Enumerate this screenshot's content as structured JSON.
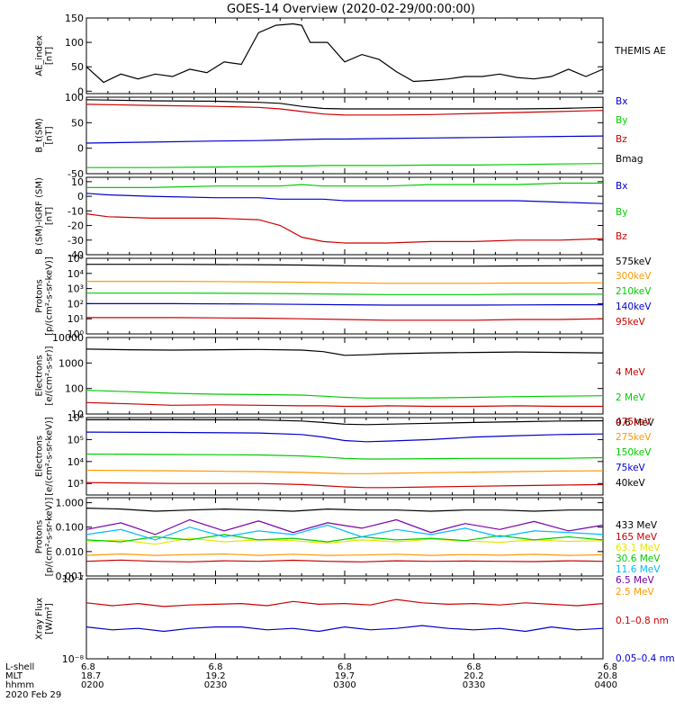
{
  "figure": {
    "title": "GOES-14 Overview (2020-02-29/00:00:00)"
  },
  "colors": {
    "black": "#000000",
    "red": "#cc0000",
    "blue": "#0000cc",
    "green": "#00cc00",
    "orange": "#ff9900",
    "yellow": "#e6e600",
    "cyan": "#00bbff",
    "purple": "#7700aa",
    "darkred": "#990000"
  },
  "footer": {
    "row_labels": [
      "L-shell",
      "MLT",
      "hhmm",
      "2020 Feb 29"
    ],
    "ticks": [
      {
        "lshell": "6.8",
        "mlt": "18.7",
        "hhmm": "0200"
      },
      {
        "lshell": "6.8",
        "mlt": "19.2",
        "hhmm": "0230"
      },
      {
        "lshell": "6.8",
        "mlt": "19.7",
        "hhmm": "0300"
      },
      {
        "lshell": "6.8",
        "mlt": "20.2",
        "hhmm": "0330"
      },
      {
        "lshell": "6.8",
        "mlt": "20.8",
        "hhmm": "0400"
      }
    ]
  },
  "chart_data": [
    {
      "type": "line",
      "ylabel": [
        "AE_index",
        "[nT]"
      ],
      "scale": "linear",
      "ylim": [
        -5,
        150
      ],
      "yticks": [
        0,
        50,
        100,
        150
      ],
      "ytick_labels": [
        "0",
        "50",
        "100",
        "150"
      ],
      "x": [
        0,
        4,
        8,
        12,
        16,
        20,
        24,
        28,
        32,
        36,
        40,
        44,
        48,
        50,
        52,
        56,
        60,
        64,
        68,
        72,
        76,
        80,
        84,
        88,
        92,
        96,
        100,
        104,
        108,
        112,
        116,
        120
      ],
      "series": [
        {
          "name": "THEMIS AE",
          "color": "black",
          "values": [
            50,
            18,
            35,
            25,
            35,
            30,
            45,
            38,
            60,
            55,
            120,
            135,
            138,
            135,
            100,
            100,
            60,
            75,
            65,
            40,
            20,
            22,
            25,
            30,
            30,
            35,
            28,
            25,
            30,
            45,
            30,
            45
          ]
        }
      ]
    },
    {
      "type": "line",
      "ylabel": [
        "B_t(SM)",
        "[nT]"
      ],
      "scale": "linear",
      "ylim": [
        -50,
        100
      ],
      "yticks": [
        -50,
        0,
        50,
        100
      ],
      "ytick_labels": [
        "-50",
        "0",
        "50",
        "100"
      ],
      "x": [
        0,
        15,
        30,
        40,
        45,
        50,
        55,
        60,
        70,
        80,
        90,
        100,
        110,
        120
      ],
      "series": [
        {
          "name": "Bx",
          "color": "blue",
          "values": [
            10,
            12,
            14,
            15,
            16,
            17,
            18,
            18,
            19,
            20,
            21,
            22,
            23,
            24
          ]
        },
        {
          "name": "By",
          "color": "green",
          "values": [
            -38,
            -38,
            -37,
            -36,
            -35,
            -35,
            -34,
            -34,
            -34,
            -33,
            -33,
            -32,
            -31,
            -30
          ]
        },
        {
          "name": "Bz",
          "color": "red",
          "values": [
            86,
            84,
            82,
            80,
            77,
            72,
            67,
            65,
            65,
            66,
            68,
            70,
            72,
            74
          ]
        },
        {
          "name": "Bmag",
          "color": "black",
          "values": [
            95,
            93,
            92,
            90,
            88,
            82,
            78,
            77,
            77,
            77,
            77,
            77,
            78,
            80
          ]
        }
      ]
    },
    {
      "type": "line",
      "ylabel": [
        "B (SM)-IGRF (SM)",
        "[nT]"
      ],
      "scale": "linear",
      "ylim": [
        -40,
        13
      ],
      "yticks": [
        -40,
        -30,
        -20,
        -10,
        0,
        10
      ],
      "ytick_labels": [
        "-40",
        "-30",
        "-20",
        "-10",
        "0",
        "10"
      ],
      "x": [
        0,
        5,
        15,
        30,
        40,
        45,
        50,
        55,
        60,
        70,
        80,
        90,
        100,
        110,
        120
      ],
      "series": [
        {
          "name": "Bx",
          "color": "blue",
          "values": [
            2,
            1,
            0,
            -1,
            -1,
            -2,
            -2,
            -2,
            -3,
            -3,
            -3,
            -3,
            -3,
            -4,
            -5
          ]
        },
        {
          "name": "By",
          "color": "green",
          "values": [
            6,
            6,
            6,
            7,
            7,
            7,
            8,
            7,
            7,
            7,
            8,
            8,
            8,
            9,
            9
          ]
        },
        {
          "name": "Bz",
          "color": "red",
          "values": [
            -12,
            -14,
            -15,
            -15,
            -16,
            -20,
            -28,
            -31,
            -32,
            -32,
            -31,
            -31,
            -30,
            -30,
            -29
          ]
        }
      ]
    },
    {
      "type": "line",
      "ylabel": [
        "Protons",
        "[p/(cm²-s-sr-keV)]"
      ],
      "scale": "log",
      "ylim": [
        1,
        100000
      ],
      "yticks": [
        1,
        10,
        100,
        1000,
        10000,
        100000
      ],
      "ytick_labels": [
        "10⁰",
        "10¹",
        "10²",
        "10³",
        "10⁴",
        "10⁵"
      ],
      "x": [
        0,
        20,
        40,
        50,
        60,
        70,
        80,
        90,
        100,
        110,
        120
      ],
      "series": [
        {
          "name": "575keV",
          "color": "black",
          "values": [
            40000,
            40000,
            38000,
            36000,
            32000,
            30000,
            30000,
            30000,
            31000,
            32000,
            33000
          ]
        },
        {
          "name": "300keV",
          "color": "orange",
          "values": [
            3000,
            3000,
            2800,
            2600,
            2400,
            2200,
            2200,
            2200,
            2300,
            2300,
            2400
          ]
        },
        {
          "name": "210keV",
          "color": "green",
          "values": [
            500,
            500,
            480,
            450,
            420,
            400,
            400,
            400,
            420,
            420,
            430
          ]
        },
        {
          "name": "140keV",
          "color": "blue",
          "values": [
            100,
            100,
            95,
            90,
            85,
            80,
            80,
            80,
            82,
            85,
            85
          ]
        },
        {
          "name": "95keV",
          "color": "red",
          "values": [
            12,
            12,
            11,
            10,
            9,
            8,
            8,
            8,
            9,
            9,
            10
          ]
        }
      ]
    },
    {
      "type": "line",
      "ylabel": [
        "Electrons",
        "[e/(cm²-s-sr)]"
      ],
      "scale": "log",
      "ylim": [
        10,
        10000
      ],
      "yticks": [
        10,
        100,
        1000,
        10000
      ],
      "ytick_labels": [
        "10",
        "100",
        "1000",
        "10000"
      ],
      "x": [
        0,
        10,
        20,
        30,
        40,
        50,
        55,
        60,
        65,
        70,
        80,
        90,
        100,
        110,
        120
      ],
      "series": [
        {
          "name": "4 MeV",
          "color": "red",
          "values": [
            28,
            25,
            22,
            23,
            22,
            21,
            21,
            20,
            20,
            21,
            20,
            20,
            21,
            20,
            20
          ]
        },
        {
          "name": "2 MeV",
          "color": "green",
          "values": [
            85,
            75,
            65,
            60,
            58,
            55,
            50,
            45,
            42,
            42,
            43,
            45,
            48,
            50,
            52
          ]
        },
        {
          "name": "0.6 MeV",
          "color": "black",
          "values": [
            3500,
            3300,
            3200,
            3300,
            3400,
            3200,
            2800,
            2000,
            2100,
            2300,
            2500,
            2600,
            2700,
            2600,
            2500
          ]
        }
      ]
    },
    {
      "type": "line",
      "ylabel": [
        "Electrons",
        "[e/(cm²-s-sr-keV)]"
      ],
      "scale": "log",
      "ylim": [
        300,
        1000000
      ],
      "yticks": [
        1000,
        10000,
        100000,
        1000000
      ],
      "ytick_labels": [
        "10³",
        "10⁴",
        "10⁵",
        "10⁶"
      ],
      "x": [
        0,
        20,
        40,
        50,
        55,
        60,
        65,
        70,
        80,
        90,
        100,
        110,
        120
      ],
      "series": [
        {
          "name": "475keV",
          "color": "red",
          "values": [
            1100,
            1000,
            1000,
            900,
            800,
            700,
            650,
            650,
            700,
            750,
            800,
            850,
            900
          ]
        },
        {
          "name": "275keV",
          "color": "orange",
          "values": [
            4000,
            3800,
            3500,
            3200,
            3000,
            2800,
            2800,
            2900,
            3100,
            3300,
            3500,
            3700,
            3800
          ]
        },
        {
          "name": "150keV",
          "color": "green",
          "values": [
            22000,
            21000,
            20000,
            18000,
            16000,
            14000,
            13000,
            13000,
            13500,
            14000,
            14000,
            14000,
            15000
          ]
        },
        {
          "name": "75keV",
          "color": "blue",
          "values": [
            220000,
            210000,
            200000,
            170000,
            130000,
            90000,
            80000,
            85000,
            100000,
            130000,
            150000,
            170000,
            180000
          ]
        },
        {
          "name": "40keV",
          "color": "black",
          "values": [
            800000,
            800000,
            790000,
            700000,
            600000,
            500000,
            480000,
            500000,
            550000,
            600000,
            650000,
            700000,
            720000
          ]
        }
      ]
    },
    {
      "type": "line",
      "ylabel": [
        "Protons",
        "[p/(cm²-s-sr-keV)]"
      ],
      "scale": "log",
      "ylim": [
        0.001,
        1.6
      ],
      "yticks": [
        0.001,
        0.01,
        0.1,
        1
      ],
      "ytick_labels": [
        "0.001",
        "0.010",
        "0.100",
        "1.000"
      ],
      "x": [
        0,
        8,
        16,
        24,
        32,
        40,
        48,
        56,
        64,
        72,
        80,
        88,
        96,
        104,
        112,
        120
      ],
      "series": [
        {
          "name": "433 MeV",
          "color": "black",
          "values": [
            0.6,
            0.55,
            0.45,
            0.5,
            0.55,
            0.5,
            0.45,
            0.55,
            0.5,
            0.5,
            0.45,
            0.5,
            0.5,
            0.45,
            0.5,
            0.5
          ]
        },
        {
          "name": "165 MeV",
          "color": "red",
          "values": [
            0.004,
            0.0045,
            0.004,
            0.0038,
            0.0042,
            0.004,
            0.0044,
            0.004,
            0.0038,
            0.0042,
            0.004,
            0.0041,
            0.004,
            0.0039,
            0.0042,
            0.004
          ]
        },
        {
          "name": "63.1 MeV",
          "color": "yellow",
          "values": [
            0.025,
            0.03,
            0.02,
            0.035,
            0.025,
            0.03,
            0.028,
            0.022,
            0.03,
            0.025,
            0.032,
            0.027,
            0.024,
            0.03,
            0.026,
            0.028
          ]
        },
        {
          "name": "30.6 MeV",
          "color": "green",
          "values": [
            0.03,
            0.025,
            0.04,
            0.03,
            0.05,
            0.03,
            0.035,
            0.025,
            0.04,
            0.03,
            0.035,
            0.028,
            0.045,
            0.03,
            0.04,
            0.03
          ]
        },
        {
          "name": "11.6 MeV",
          "color": "cyan",
          "values": [
            0.05,
            0.08,
            0.03,
            0.1,
            0.04,
            0.07,
            0.05,
            0.12,
            0.04,
            0.08,
            0.05,
            0.09,
            0.04,
            0.07,
            0.06,
            0.05
          ]
        },
        {
          "name": "6.5 MeV",
          "color": "purple",
          "values": [
            0.08,
            0.15,
            0.05,
            0.2,
            0.07,
            0.18,
            0.06,
            0.15,
            0.09,
            0.2,
            0.06,
            0.14,
            0.08,
            0.17,
            0.07,
            0.12
          ]
        },
        {
          "name": "2.5 MeV",
          "color": "orange",
          "values": [
            0.007,
            0.008,
            0.007,
            0.0075,
            0.008,
            0.007,
            0.0078,
            0.007,
            0.0072,
            0.0078,
            0.007,
            0.0075,
            0.0071,
            0.0077,
            0.007,
            0.0074
          ]
        }
      ]
    },
    {
      "type": "line",
      "ylabel": [
        "Xray Flux",
        "[W/m²]"
      ],
      "scale": "log",
      "ylim": [
        1e-08,
        1e-07
      ],
      "yticks": [
        1e-08,
        1e-07
      ],
      "ytick_labels": [
        "10⁻⁸",
        "10⁻⁷"
      ],
      "x": [
        0,
        6,
        12,
        18,
        24,
        30,
        36,
        42,
        48,
        54,
        60,
        66,
        72,
        78,
        84,
        90,
        96,
        102,
        108,
        114,
        120
      ],
      "series": [
        {
          "name": "0.1–0.8 nm",
          "color": "red",
          "values": [
            5e-08,
            4.6e-08,
            4.9e-08,
            4.5e-08,
            4.7e-08,
            4.8e-08,
            4.9e-08,
            4.6e-08,
            5.2e-08,
            4.8e-08,
            4.9e-08,
            4.7e-08,
            5.5e-08,
            5e-08,
            4.8e-08,
            4.9e-08,
            4.7e-08,
            5e-08,
            4.8e-08,
            4.6e-08,
            4.9e-08
          ]
        },
        {
          "name": "0.05–0.4 nm",
          "color": "blue",
          "values": [
            2.5e-08,
            2.3e-08,
            2.4e-08,
            2.2e-08,
            2.4e-08,
            2.5e-08,
            2.5e-08,
            2.3e-08,
            2.4e-08,
            2.2e-08,
            2.5e-08,
            2.3e-08,
            2.4e-08,
            2.6e-08,
            2.4e-08,
            2.3e-08,
            2.4e-08,
            2.2e-08,
            2.5e-08,
            2.3e-08,
            2.4e-08
          ]
        }
      ]
    }
  ]
}
